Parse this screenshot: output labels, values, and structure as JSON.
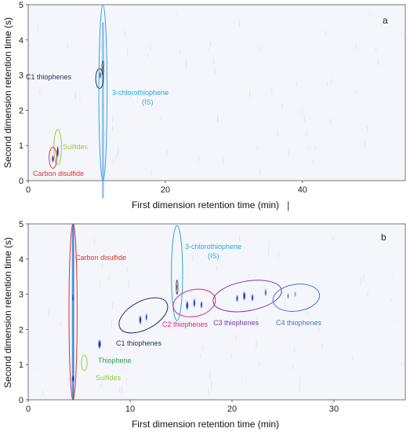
{
  "chart_data": [
    {
      "type": "heatmap",
      "panel": "a",
      "xlabel": "First dimension retention time (min)",
      "ylabel": "Second dimension retention time (s)",
      "xlim": [
        0,
        55
      ],
      "ylim": [
        0,
        5
      ],
      "xticks": [
        0,
        20,
        40
      ],
      "yticks": [
        0,
        1,
        2,
        3,
        4,
        5
      ],
      "peaks": [
        {
          "x": 3.6,
          "y": 0.62,
          "h": 0.25,
          "w": 0.4,
          "i": 0.8
        },
        {
          "x": 4.3,
          "y": 0.82,
          "h": 0.4,
          "w": 0.35,
          "i": 0.9
        },
        {
          "x": 10.5,
          "y": 3.0,
          "h": 0.25,
          "w": 0.5,
          "i": 0.4
        },
        {
          "x": 10.9,
          "y": 3.2,
          "h": 0.45,
          "w": 0.45,
          "i": 1.0
        },
        {
          "x": 10.9,
          "y": 2.0,
          "h": 5.0,
          "w": 0.35,
          "i": 0.45,
          "streak": true
        }
      ],
      "annotations": [
        {
          "text": "C1 thiophenes",
          "color": "#1f2d5c",
          "x": 10.4,
          "y": 2.9,
          "ex": 10.4,
          "ey": 2.9,
          "erx": 0.55,
          "ery": 0.28
        },
        {
          "text": "3-chlorothiophene",
          "color": "#2ba8d8",
          "x": 10.9,
          "y": 2.5,
          "ex": 10.9,
          "ey": 2.5,
          "erx": 0.6,
          "ery": 2.5
        },
        {
          "text": "(IS)",
          "color": "#2ba8d8"
        },
        {
          "text": "Sulfides",
          "color": "#9acd3c",
          "x": 4.3,
          "y": 0.9,
          "ex": 4.3,
          "ey": 0.95,
          "erx": 0.55,
          "ery": 0.5
        },
        {
          "text": "Carbon disulfide",
          "color": "#e03030",
          "x": 3.6,
          "y": 0.65,
          "ex": 3.6,
          "ey": 0.65,
          "erx": 0.55,
          "ery": 0.3
        }
      ]
    },
    {
      "type": "heatmap",
      "panel": "b",
      "xlabel": "First dimension retention time (min)",
      "ylabel": "Second dimension retention time (s)",
      "xlim": [
        0,
        37
      ],
      "ylim": [
        0,
        5
      ],
      "xticks": [
        0,
        10,
        20,
        30
      ],
      "yticks": [
        0,
        1,
        2,
        3,
        4,
        5
      ],
      "peaks": [
        {
          "x": 4.4,
          "y": 2.5,
          "h": 5.0,
          "w": 0.25,
          "i": 0.8,
          "streak": true
        },
        {
          "x": 4.4,
          "y": 0.6,
          "h": 0.3,
          "w": 0.3,
          "i": 0.9
        },
        {
          "x": 4.4,
          "y": 2.9,
          "h": 0.35,
          "w": 0.25,
          "i": 0.5
        },
        {
          "x": 7.0,
          "y": 1.58,
          "h": 0.3,
          "w": 0.35,
          "i": 0.9
        },
        {
          "x": 11.0,
          "y": 2.27,
          "h": 0.3,
          "w": 0.3,
          "i": 0.8
        },
        {
          "x": 11.6,
          "y": 2.35,
          "h": 0.25,
          "w": 0.25,
          "i": 0.6
        },
        {
          "x": 14.6,
          "y": 3.2,
          "h": 0.45,
          "w": 0.3,
          "i": 1.0
        },
        {
          "x": 15.6,
          "y": 2.68,
          "h": 0.3,
          "w": 0.3,
          "i": 0.85
        },
        {
          "x": 16.3,
          "y": 2.75,
          "h": 0.3,
          "w": 0.25,
          "i": 0.8
        },
        {
          "x": 17.0,
          "y": 2.7,
          "h": 0.25,
          "w": 0.25,
          "i": 0.7
        },
        {
          "x": 20.5,
          "y": 2.88,
          "h": 0.25,
          "w": 0.25,
          "i": 0.7
        },
        {
          "x": 21.2,
          "y": 2.95,
          "h": 0.3,
          "w": 0.3,
          "i": 0.9
        },
        {
          "x": 22.0,
          "y": 2.9,
          "h": 0.25,
          "w": 0.25,
          "i": 0.75
        },
        {
          "x": 23.3,
          "y": 3.05,
          "h": 0.25,
          "w": 0.25,
          "i": 0.5
        },
        {
          "x": 25.5,
          "y": 2.95,
          "h": 0.2,
          "w": 0.25,
          "i": 0.25
        },
        {
          "x": 26.2,
          "y": 3.0,
          "h": 0.2,
          "w": 0.2,
          "i": 0.2
        }
      ],
      "annotations": [
        {
          "text": "Carbon disulfide",
          "color": "#e03030",
          "ex": 4.4,
          "ey": 2.5,
          "erx": 0.4,
          "ery": 2.5
        },
        {
          "text": "3-chlorothiophene",
          "color": "#2ba8d8",
          "ex": 14.6,
          "ey": 3.6,
          "erx": 0.55,
          "ery": 1.35
        },
        {
          "text": "(IS)",
          "color": "#2ba8d8"
        },
        {
          "text": "C1 thiophenes",
          "color": "#1f2d5c",
          "ex": 11.3,
          "ey": 2.4,
          "erx": 2.6,
          "ery": 0.4,
          "rot": -28
        },
        {
          "text": "C2 thiophenes",
          "color": "#d62888",
          "ex": 16.3,
          "ey": 2.75,
          "erx": 2.1,
          "ery": 0.38,
          "rot": -12
        },
        {
          "text": "C3 thiophenes",
          "color": "#7a3ab0",
          "ex": 21.5,
          "ey": 2.95,
          "erx": 3.4,
          "ery": 0.42,
          "rot": -10
        },
        {
          "text": "C4 thiophenes",
          "color": "#3a7ad0",
          "ex": 26.3,
          "ey": 2.9,
          "erx": 2.3,
          "ery": 0.38,
          "rot": -8
        },
        {
          "text": "Thiophene",
          "color": "#2aa04a",
          "ex": 7.0,
          "ey": 1.6,
          "erx": 0.0,
          "ery": 0.0
        },
        {
          "text": "Sulfides",
          "color": "#9acd3c",
          "ex": 5.5,
          "ey": 1.05,
          "erx": 0.28,
          "ery": 0.22
        }
      ]
    }
  ],
  "cursor": "|"
}
